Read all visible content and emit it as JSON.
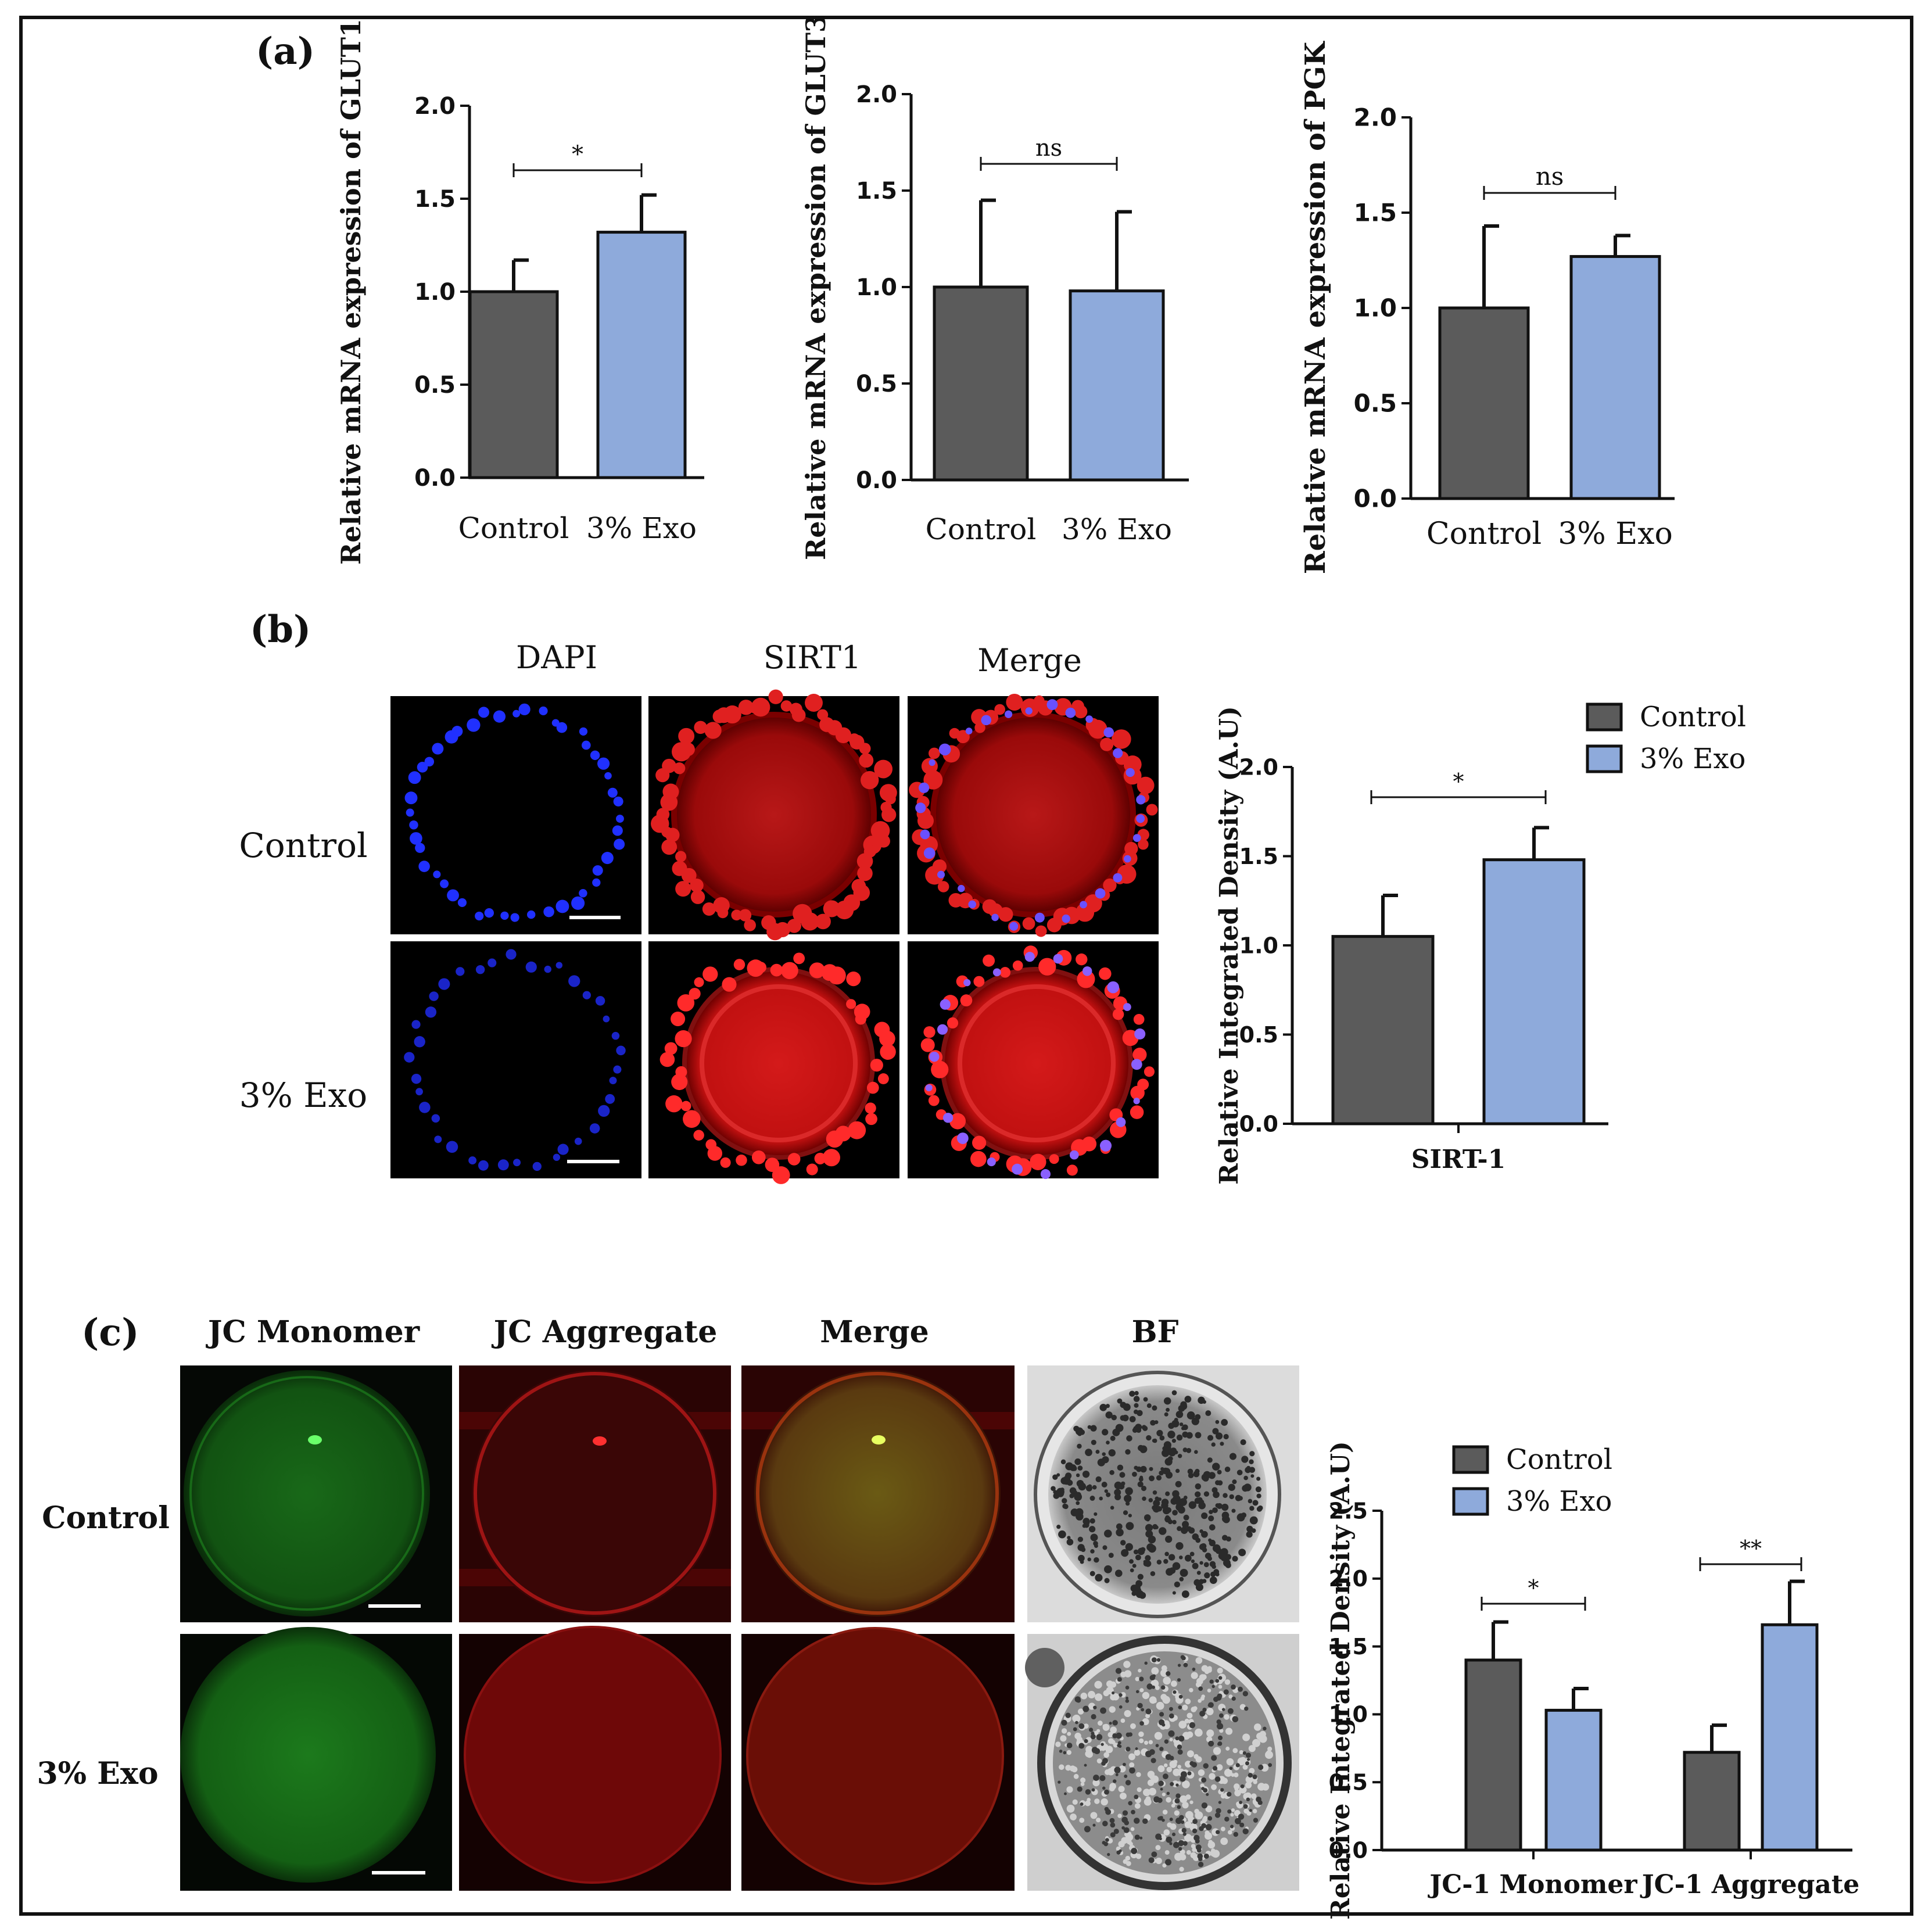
{
  "panels": {
    "a": "(a)",
    "b": "(b)",
    "c": "(c)"
  },
  "colors": {
    "control": "#5b5b5b",
    "exo": "#8eaadb",
    "axis": "#111111"
  },
  "panel_b": {
    "columns": [
      "DAPI",
      "SIRT1",
      "Merge"
    ],
    "rows": [
      "Control",
      "3% Exo"
    ]
  },
  "panel_c": {
    "columns": [
      "JC Monomer",
      "JC Aggregate",
      "Merge",
      "BF"
    ],
    "rows": [
      "Control",
      "3% Exo"
    ]
  },
  "chart_data": [
    {
      "type": "bar",
      "ylabel": "Relative mRNA expression of GLUT1",
      "categories": [
        "Control",
        "3% Exo"
      ],
      "values": [
        1.0,
        1.32
      ],
      "errors": [
        0.17,
        0.2
      ],
      "ylim": [
        0,
        2.0
      ],
      "yticks": [
        "0.0",
        "0.5",
        "1.0",
        "1.5",
        "2.0"
      ],
      "significance": [
        {
          "between": [
            0,
            1
          ],
          "label": "*"
        }
      ]
    },
    {
      "type": "bar",
      "ylabel": "Relative mRNA expression of GLUT3",
      "categories": [
        "Control",
        "3% Exo"
      ],
      "values": [
        1.0,
        0.98
      ],
      "errors": [
        0.45,
        0.41
      ],
      "ylim": [
        0,
        2.0
      ],
      "yticks": [
        "0.0",
        "0.5",
        "1.0",
        "1.5",
        "2.0"
      ],
      "significance": [
        {
          "between": [
            0,
            1
          ],
          "label": "ns"
        }
      ]
    },
    {
      "type": "bar",
      "ylabel": "Relative mRNA expression of PGK",
      "categories": [
        "Control",
        "3% Exo"
      ],
      "values": [
        1.0,
        1.27
      ],
      "errors": [
        0.43,
        0.11
      ],
      "ylim": [
        0,
        2.0
      ],
      "yticks": [
        "0.0",
        "0.5",
        "1.0",
        "1.5",
        "2.0"
      ],
      "significance": [
        {
          "between": [
            0,
            1
          ],
          "label": "ns"
        }
      ]
    },
    {
      "type": "bar",
      "ylabel": "Relative Integrated Density (A.U)",
      "categories": [
        "SIRT-1"
      ],
      "series": [
        {
          "name": "Control",
          "values": [
            1.05
          ],
          "errors": [
            0.23
          ]
        },
        {
          "name": "3% Exo",
          "values": [
            1.48
          ],
          "errors": [
            0.18
          ]
        }
      ],
      "legend": "top-right",
      "ylim": [
        0,
        2.0
      ],
      "yticks": [
        "0.0",
        "0.5",
        "1.0",
        "1.5",
        "2.0"
      ],
      "significance": [
        {
          "category": 0,
          "label": "*"
        }
      ]
    },
    {
      "type": "bar",
      "ylabel": "Relative Integrated Density (A.U)",
      "categories": [
        "JC-1 Monomer",
        "JC-1 Aggregate"
      ],
      "series": [
        {
          "name": "Control",
          "values": [
            1.4,
            0.72
          ],
          "errors": [
            0.28,
            0.2
          ]
        },
        {
          "name": "3% Exo",
          "values": [
            1.03,
            1.66
          ],
          "errors": [
            0.16,
            0.32
          ]
        }
      ],
      "legend": "top-left",
      "ylim": [
        0,
        2.5
      ],
      "yticks": [
        "0.0",
        "0.5",
        "1.0",
        "1.5",
        "2.0",
        "2.5"
      ],
      "significance": [
        {
          "category": 0,
          "label": "*"
        },
        {
          "category": 1,
          "label": "**"
        }
      ]
    }
  ]
}
